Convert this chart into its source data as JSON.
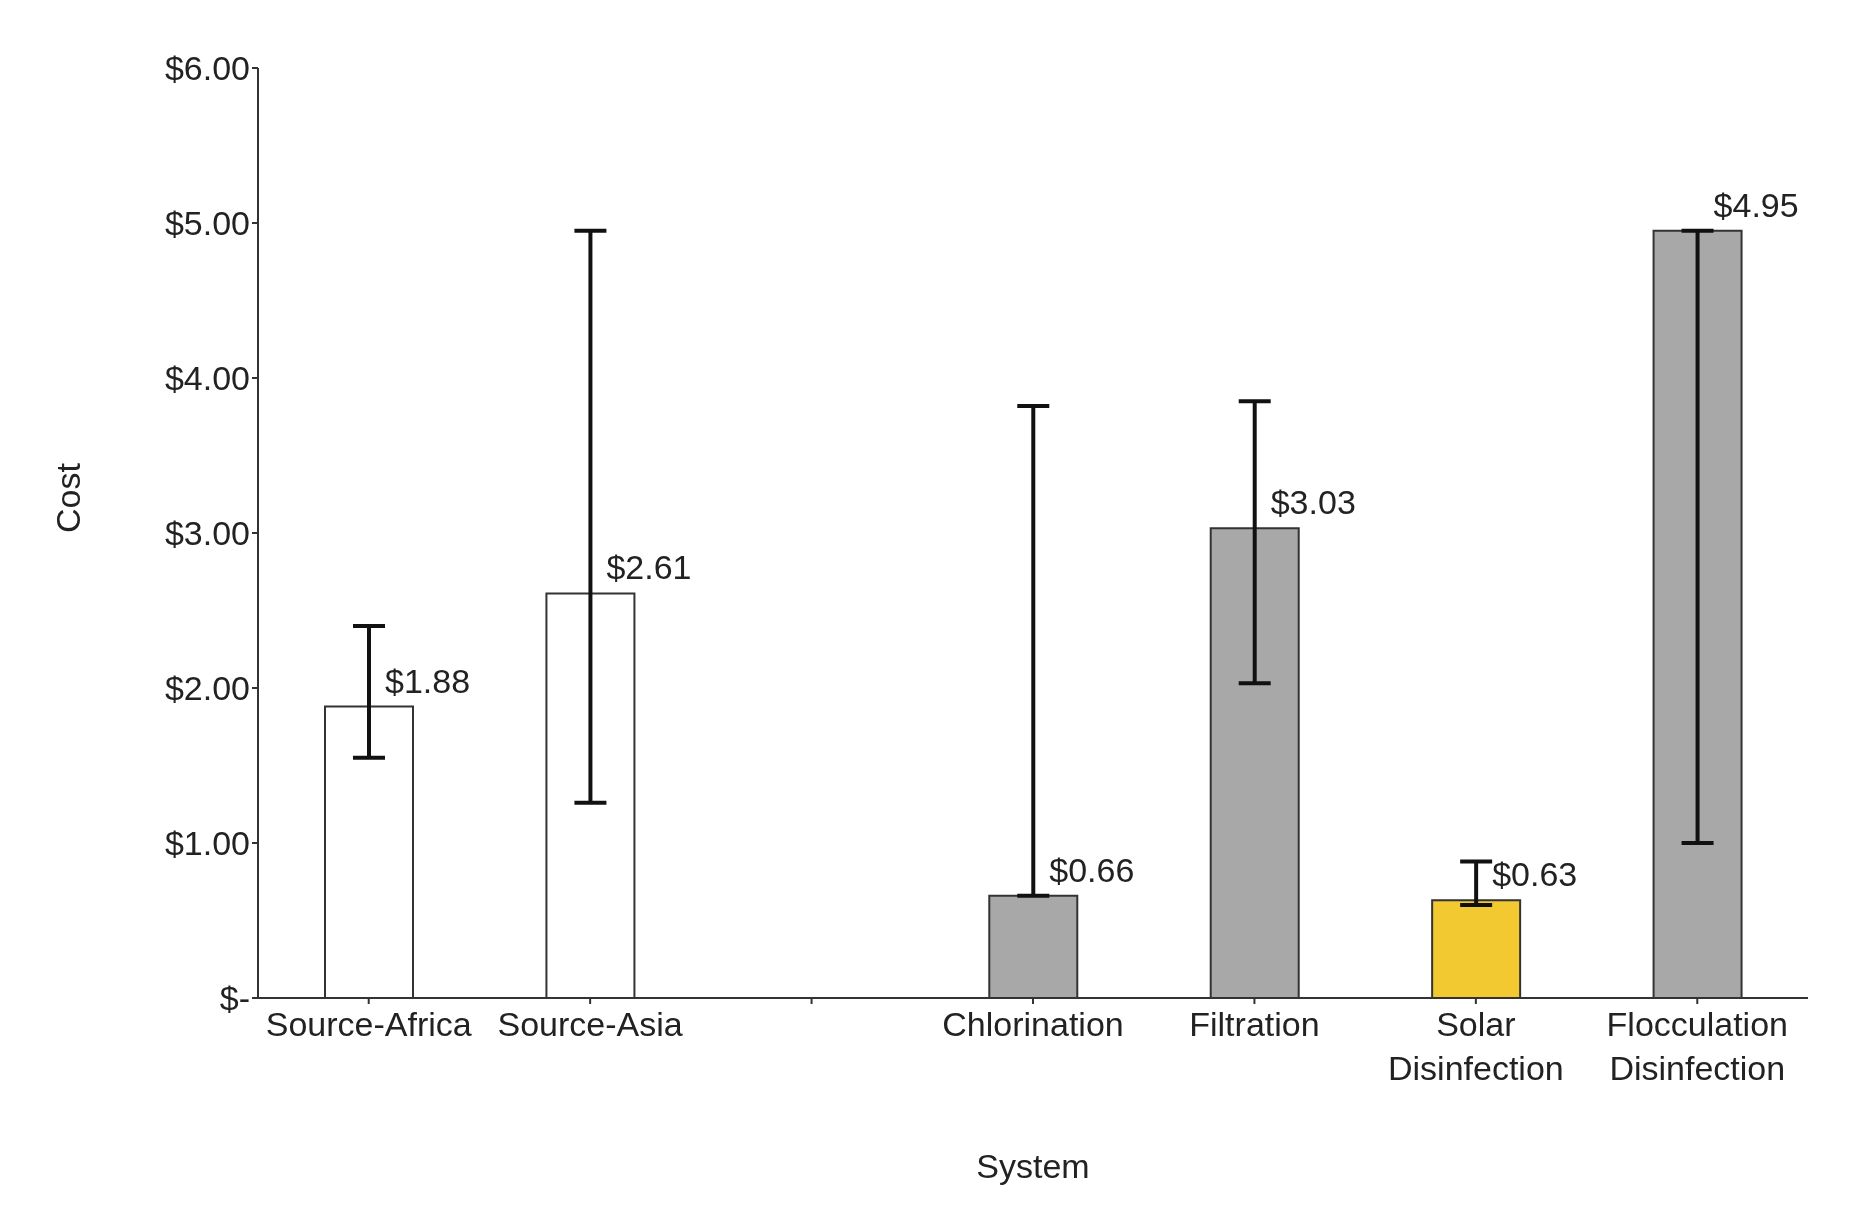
{
  "chart_data": {
    "type": "bar",
    "xlabel": "System",
    "ylabel": "Cost",
    "categories": [
      "Source-Africa",
      "Source-Asia",
      null,
      "Chlorination",
      "Filtration",
      "Solar Disinfection",
      "Flocculation Disinfection"
    ],
    "values": [
      1.88,
      2.61,
      null,
      0.66,
      3.03,
      0.63,
      4.95
    ],
    "colors": [
      "#ffffff",
      "#ffffff",
      "#ffffff",
      "#a8a8a8",
      "#a8a8a8",
      "#f2c930",
      "#a8a8a8"
    ],
    "errors": [
      [
        1.55,
        2.4
      ],
      [
        1.26,
        4.95
      ],
      null,
      [
        0.66,
        3.82
      ],
      [
        2.03,
        3.85
      ],
      [
        0.6,
        0.88
      ],
      [
        1.0,
        4.95
      ]
    ],
    "value_labels": [
      "$1.88",
      "$2.61",
      null,
      "$0.66",
      "$3.03",
      "$0.63",
      "$4.95"
    ],
    "ylim": [
      0,
      6
    ],
    "yticks": [
      {
        "value": 0,
        "label": "$-"
      },
      {
        "value": 1,
        "label": "$1.00"
      },
      {
        "value": 2,
        "label": "$2.00"
      },
      {
        "value": 3,
        "label": "$3.00"
      },
      {
        "value": 4,
        "label": "$4.00"
      },
      {
        "value": 5,
        "label": "$5.00"
      },
      {
        "value": 6,
        "label": "$6.00"
      }
    ],
    "grid": false,
    "legend": false
  }
}
